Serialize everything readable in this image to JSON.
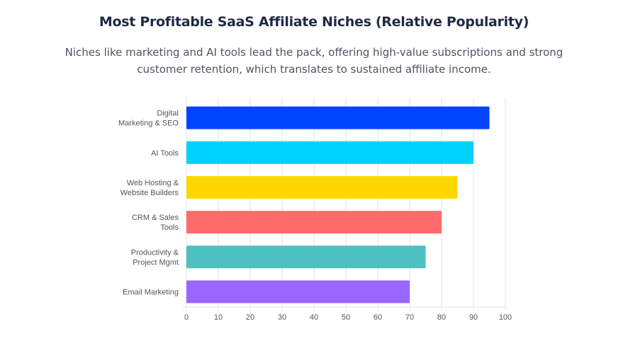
{
  "title": "Most Profitable SaaS Affiliate Niches (Relative Popularity)",
  "subtitle": "Niches like marketing and AI tools lead the pack, offering high-value subscriptions and strong customer retention, which translates to sustained affiliate income.",
  "chart_data": {
    "type": "bar",
    "orientation": "horizontal",
    "categories": [
      [
        "Digital",
        "Marketing & SEO"
      ],
      [
        "AI Tools"
      ],
      [
        "Web Hosting &",
        "Website Builders"
      ],
      [
        "CRM & Sales",
        "Tools"
      ],
      [
        "Productivity &",
        "Project Mgmt"
      ],
      [
        "Email Marketing"
      ]
    ],
    "values": [
      95,
      90,
      85,
      80,
      75,
      70
    ],
    "colors": [
      "#0044ff",
      "#00d2ff",
      "#ffd700",
      "#ff6b6b",
      "#4dc0c0",
      "#9966ff"
    ],
    "xlim": [
      0,
      100
    ],
    "xticks": [
      "0",
      "10",
      "20",
      "30",
      "40",
      "50",
      "60",
      "70",
      "80",
      "90",
      "100"
    ],
    "grid": true,
    "legend": "none"
  }
}
